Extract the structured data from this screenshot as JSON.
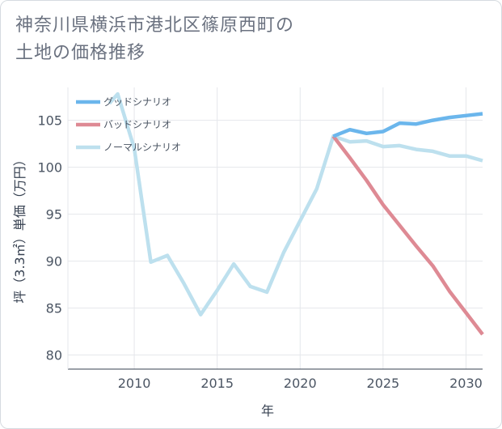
{
  "title_lines": [
    "神奈川県横浜市港北区篠原西町の",
    "土地の価格推移"
  ],
  "chart_data": {
    "type": "line",
    "title": "神奈川県横浜市港北区篠原西町の土地の価格推移",
    "xlabel": "年",
    "ylabel": "坪（3.3㎡）単価（万円）",
    "xlim": [
      2006,
      2031
    ],
    "ylim": [
      78.5,
      108.5
    ],
    "xticks": [
      2010,
      2015,
      2020,
      2025,
      2030
    ],
    "yticks": [
      80,
      85,
      90,
      95,
      100,
      105
    ],
    "legend_position": "top-left",
    "series": [
      {
        "name": "グッドシナリオ",
        "color": "#6bb6ec",
        "x": [
          2022,
          2023,
          2024,
          2025,
          2026,
          2027,
          2028,
          2029,
          2030,
          2031
        ],
        "y": [
          103.3,
          104.0,
          103.6,
          103.8,
          104.7,
          104.6,
          105.0,
          105.3,
          105.5,
          105.7
        ]
      },
      {
        "name": "バッドシナリオ",
        "color": "#de8a94",
        "x": [
          2022,
          2023,
          2024,
          2025,
          2026,
          2027,
          2028,
          2029,
          2030,
          2031
        ],
        "y": [
          103.3,
          101.0,
          98.6,
          96.0,
          93.8,
          91.6,
          89.5,
          86.8,
          84.5,
          82.2
        ]
      },
      {
        "name": "ノーマルシナリオ",
        "color": "#bde0ee",
        "x": [
          2008.5,
          2009,
          2010,
          2011,
          2012,
          2013,
          2014,
          2015,
          2016,
          2017,
          2018,
          2019,
          2020,
          2021,
          2022,
          2023,
          2024,
          2025,
          2026,
          2027,
          2028,
          2029,
          2030,
          2031
        ],
        "y": [
          106.8,
          107.8,
          102.0,
          89.9,
          90.6,
          87.6,
          84.3,
          86.9,
          89.7,
          87.3,
          86.7,
          90.9,
          94.3,
          97.7,
          103.3,
          102.7,
          102.8,
          102.2,
          102.3,
          101.9,
          101.7,
          101.2,
          101.2,
          100.7
        ]
      }
    ]
  }
}
